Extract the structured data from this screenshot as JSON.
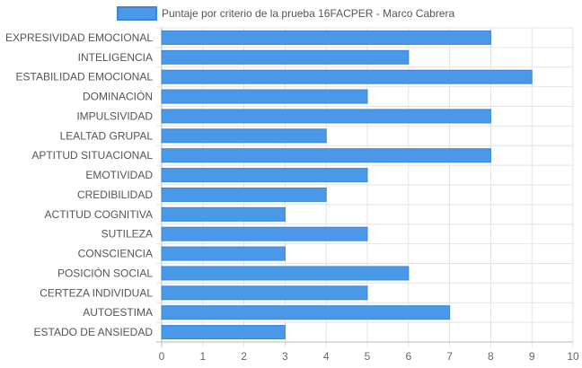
{
  "chart_data": {
    "type": "bar",
    "orientation": "horizontal",
    "categories": [
      "EXPRESIVIDAD EMOCIONAL",
      "INTELIGENCIA",
      "ESTABILIDAD EMOCIONAL",
      "DOMINACIÓN",
      "IMPULSIVIDAD",
      "LEALTAD GRUPAL",
      "APTITUD SITUACIONAL",
      "EMOTIVIDAD",
      "CREDIBILIDAD",
      "ACTITUD COGNITIVA",
      "SUTILEZA",
      "CONSCIENCIA",
      "POSICIÓN SOCIAL",
      "CERTEZA INDIVIDUAL",
      "AUTOESTIMA",
      "ESTADO DE ANSIEDAD"
    ],
    "series": [
      {
        "name": "Puntaje por criterio de la prueba 16FACPER - Marco Cabrera",
        "values": [
          8,
          6,
          9,
          5,
          8,
          4,
          8,
          5,
          4,
          3,
          5,
          3,
          6,
          5,
          7,
          3
        ]
      }
    ],
    "xlim": [
      0,
      10
    ],
    "xticks": [
      "0",
      "1",
      "2",
      "3",
      "4",
      "5",
      "6",
      "7",
      "8",
      "9",
      "10"
    ],
    "grid": true,
    "legend_position": "top-center",
    "bar_color": "#4a98e8",
    "bar_border_color": "#3a86d8"
  }
}
